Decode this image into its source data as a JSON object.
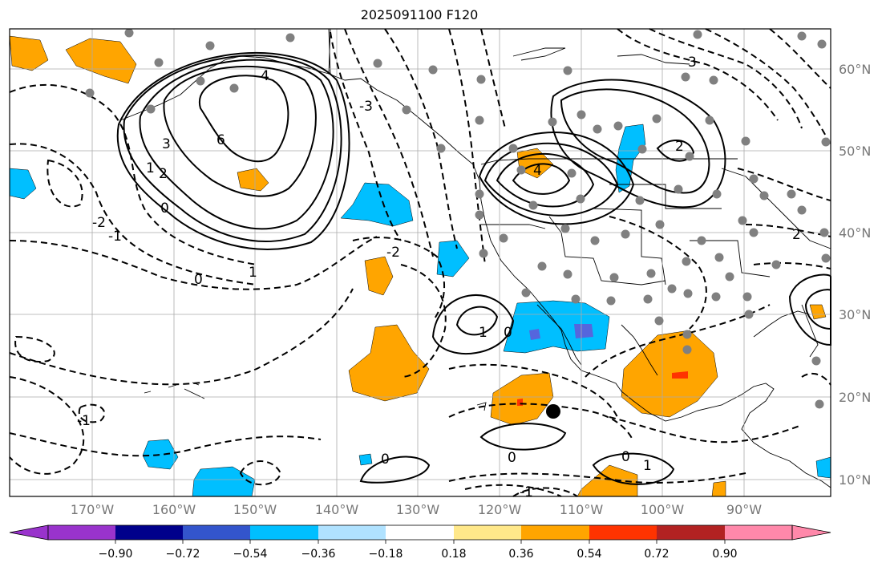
{
  "title": "2025091100 F120",
  "lat_labels": [
    "60°N",
    "50°N",
    "40°N",
    "30°N",
    "20°N",
    "10°N"
  ],
  "lon_labels": [
    "170°W",
    "160°W",
    "150°W",
    "140°W",
    "130°W",
    "120°W",
    "110°W",
    "100°W",
    "90°W"
  ],
  "colorbar": {
    "colors": [
      "#9933cc",
      "#00008b",
      "#3355cc",
      "#00bfff",
      "#b0e2ff",
      "#ffffff",
      "#ffe88a",
      "#ffa500",
      "#ff3300",
      "#b22222",
      "#ff88aa"
    ],
    "tick_labels": [
      "−0.90",
      "−0.72",
      "−0.54",
      "−0.36",
      "−0.18",
      "0.18",
      "0.36",
      "0.54",
      "0.72",
      "0.90"
    ]
  },
  "contour_labels": [
    "6",
    "4",
    "3",
    "2",
    "1",
    "0",
    "-1",
    "-2",
    "-3",
    "2",
    "4",
    "1",
    "0",
    "0",
    "1",
    "0",
    "1",
    "0",
    "-1",
    "-2",
    "2",
    "3",
    "0",
    "-1"
  ],
  "colors": {
    "orange": "#ffa500",
    "cyan": "#00bfff",
    "purple": "#5566dd",
    "red": "#ff3300",
    "grid": "#aaaaaa",
    "station": "#808080"
  }
}
